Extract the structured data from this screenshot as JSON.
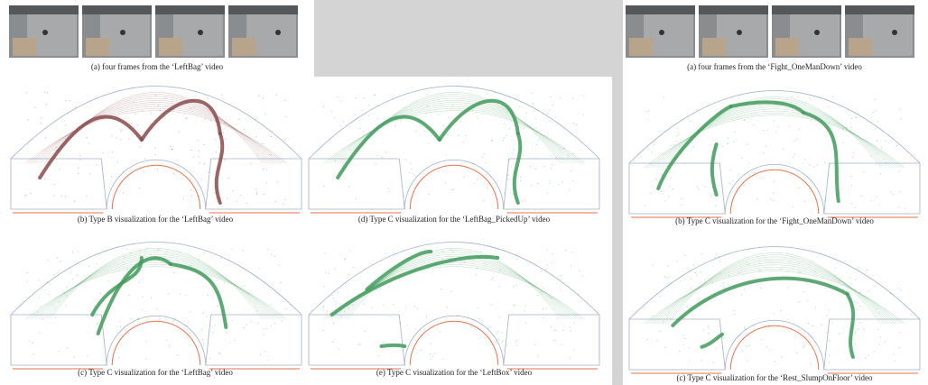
{
  "left": {
    "frames_caption": "(a) four frames from the ‘LeftBag’ video",
    "panels": [
      {
        "caption": "(b) Type B visualization for the ‘LeftBag’ video"
      },
      {
        "caption": "(d) Type C visualization for the ‘LeftBag_PickedUp’ video"
      },
      {
        "caption": "(c) Type C visualization for the ‘LeftBag’ video"
      },
      {
        "caption": "(e) Type C visualization for the ‘LeftBox’ video"
      }
    ]
  },
  "right": {
    "frames_caption": "(a) four frames from the ‘Fight_OneManDown’ video",
    "panels": [
      {
        "caption": "(b) Type C visualization for the ‘Fight_OneManDown’ video"
      },
      {
        "caption": "(c) Type C visualization for the ‘Rest_SlumpOnFloor’ video"
      }
    ]
  }
}
